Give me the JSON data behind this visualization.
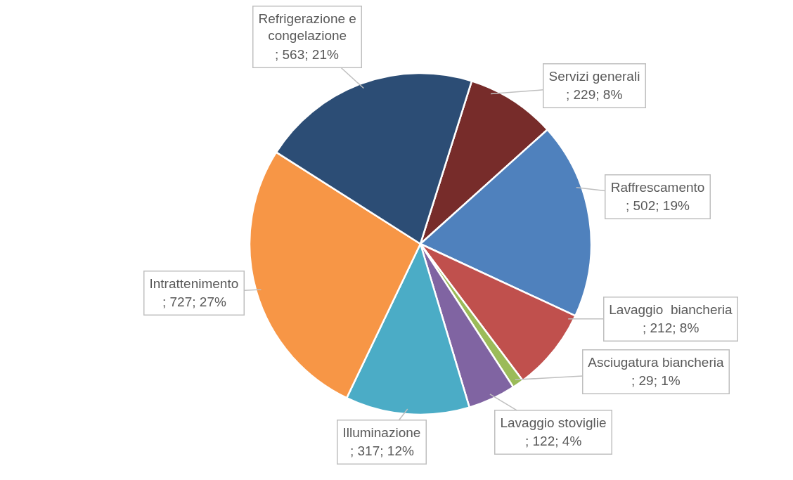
{
  "chart_data": {
    "type": "pie",
    "categories": [
      "Servizi generali",
      "Raffrescamento",
      "Lavaggio  biancheria",
      "Asciugatura biancheria",
      "Lavaggio stoviglie",
      "Illuminazione",
      "Intrattenimento",
      "Refrigerazione e congelazione"
    ],
    "values": [
      229,
      502,
      212,
      29,
      122,
      317,
      727,
      563
    ],
    "colors": [
      "#772c2a",
      "#4f81bd",
      "#c0504d",
      "#9bbb59",
      "#8064a2",
      "#4bacc6",
      "#f79646",
      "#2c4d75"
    ],
    "value_labels": [
      "; 229; 8%",
      "; 502; 19%",
      "; 212; 8%",
      "; 29; 1%",
      "; 122; 4%",
      "; 317; 12%",
      "; 727; 27%",
      "; 563; 21%"
    ]
  }
}
